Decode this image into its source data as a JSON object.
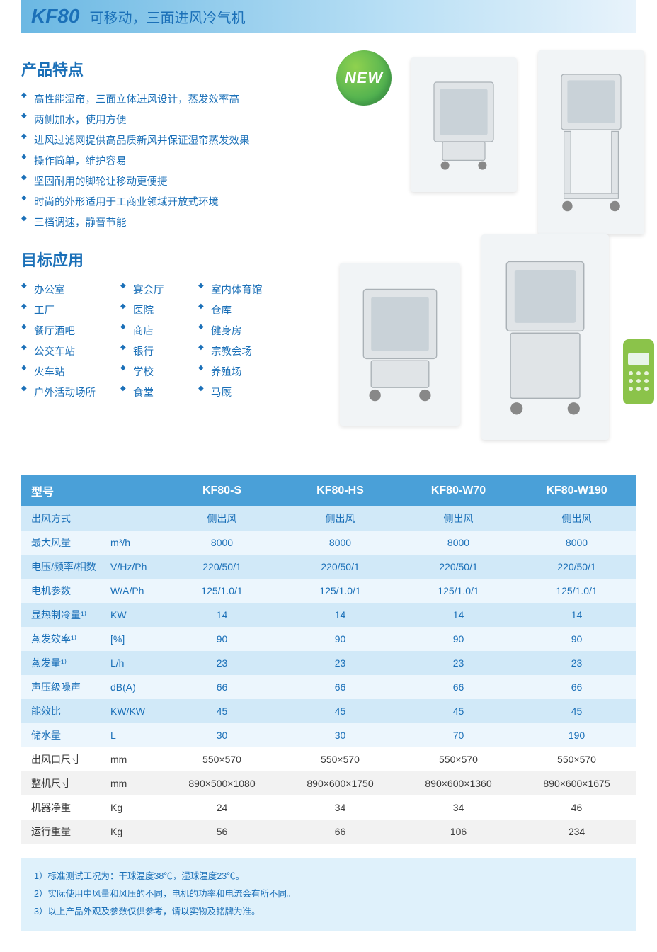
{
  "header": {
    "code": "KF80",
    "subtitle": "可移动，三面进风冷气机"
  },
  "features_title": "产品特点",
  "features": [
    "高性能湿帘，三面立体进风设计，蒸发效率高",
    "两侧加水，使用方便",
    "进风过滤网提供高品质新风并保证湿帘蒸发效果",
    "操作简单，维护容易",
    "坚固耐用的脚轮让移动更便捷",
    "时尚的外形适用于工商业领域开放式环境",
    "三档调速，静音节能"
  ],
  "applications_title": "目标应用",
  "applications": [
    [
      "办公室",
      "宴会厅",
      "室内体育馆"
    ],
    [
      "工厂",
      "医院",
      "仓库"
    ],
    [
      "餐厅酒吧",
      "商店",
      "健身房"
    ],
    [
      "公交车站",
      "银行",
      "宗教会场"
    ],
    [
      "火车站",
      "学校",
      "养殖场"
    ],
    [
      "户外活动场所",
      "食堂",
      "马厩"
    ]
  ],
  "new_badge": "NEW",
  "spec_table": {
    "header_label": "型号",
    "models": [
      "KF80-S",
      "KF80-HS",
      "KF80-W70",
      "KF80-W190"
    ],
    "rows": [
      {
        "label": "出风方式",
        "unit": "",
        "values": [
          "侧出风",
          "侧出风",
          "侧出风",
          "侧出风"
        ],
        "stripe": "a"
      },
      {
        "label": "最大风量",
        "unit": "m³/h",
        "values": [
          "8000",
          "8000",
          "8000",
          "8000"
        ],
        "stripe": "b"
      },
      {
        "label": "电压/频率/相数",
        "unit": "V/Hz/Ph",
        "values": [
          "220/50/1",
          "220/50/1",
          "220/50/1",
          "220/50/1"
        ],
        "stripe": "a"
      },
      {
        "label": "电机参数",
        "unit": "W/A/Ph",
        "values": [
          "125/1.0/1",
          "125/1.0/1",
          "125/1.0/1",
          "125/1.0/1"
        ],
        "stripe": "b"
      },
      {
        "label": "显热制冷量¹⁾",
        "unit": "KW",
        "values": [
          "14",
          "14",
          "14",
          "14"
        ],
        "stripe": "a"
      },
      {
        "label": "蒸发效率¹⁾",
        "unit": "[%]",
        "values": [
          "90",
          "90",
          "90",
          "90"
        ],
        "stripe": "b"
      },
      {
        "label": "蒸发量¹⁾",
        "unit": "L/h",
        "values": [
          "23",
          "23",
          "23",
          "23"
        ],
        "stripe": "a"
      },
      {
        "label": "声压级噪声",
        "unit": "dB(A)",
        "values": [
          "66",
          "66",
          "66",
          "66"
        ],
        "stripe": "b"
      },
      {
        "label": "能效比",
        "unit": "KW/KW",
        "values": [
          "45",
          "45",
          "45",
          "45"
        ],
        "stripe": "a"
      },
      {
        "label": "储水量",
        "unit": "L",
        "values": [
          "30",
          "30",
          "70",
          "190"
        ],
        "stripe": "b"
      },
      {
        "label": "出风口尺寸",
        "unit": "mm",
        "values": [
          "550×570",
          "550×570",
          "550×570",
          "550×570"
        ],
        "stripe": "c"
      },
      {
        "label": "整机尺寸",
        "unit": "mm",
        "values": [
          "890×500×1080",
          "890×600×1750",
          "890×600×1360",
          "890×600×1675"
        ],
        "stripe": "d"
      },
      {
        "label": "机器净重",
        "unit": "Kg",
        "values": [
          "24",
          "34",
          "34",
          "46"
        ],
        "stripe": "c"
      },
      {
        "label": "运行重量",
        "unit": "Kg",
        "values": [
          "56",
          "66",
          "106",
          "234"
        ],
        "stripe": "d"
      }
    ]
  },
  "notes": [
    "1）标准测试工况为：干球温度38℃，湿球温度23℃。",
    "2）实际使用中风量和风压的不同，电机的功率和电流会有所不同。",
    "3）以上产品外观及参数仅供参考，请以实物及铭牌为准。"
  ],
  "colors": {
    "brand_blue": "#1b70b8",
    "header_start": "#6bb8e3",
    "table_header": "#4aa0d8",
    "stripe_a": "#d1e9f8",
    "stripe_b": "#ecf6fd",
    "stripe_c": "#ffffff",
    "stripe_d": "#f2f2f2",
    "notes_bg": "#dff1fb",
    "new_badge": "#4caf50"
  }
}
